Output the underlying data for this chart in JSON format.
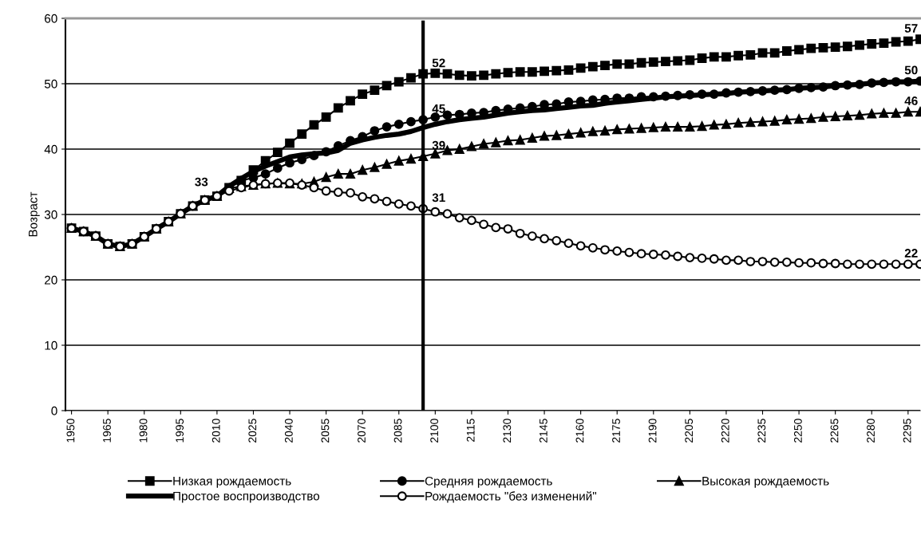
{
  "chart_data": {
    "type": "line",
    "ylabel": "Возраст",
    "x": [
      1950,
      1955,
      1960,
      1965,
      1970,
      1975,
      1980,
      1985,
      1990,
      1995,
      2000,
      2005,
      2010,
      2015,
      2020,
      2025,
      2030,
      2035,
      2040,
      2045,
      2050,
      2055,
      2060,
      2065,
      2070,
      2075,
      2080,
      2085,
      2090,
      2095,
      2100,
      2105,
      2110,
      2115,
      2120,
      2125,
      2130,
      2135,
      2140,
      2145,
      2150,
      2155,
      2160,
      2165,
      2170,
      2175,
      2180,
      2185,
      2190,
      2195,
      2200,
      2205,
      2210,
      2215,
      2220,
      2225,
      2230,
      2235,
      2240,
      2245,
      2250,
      2255,
      2260,
      2265,
      2270,
      2275,
      2280,
      2285,
      2290,
      2295,
      2300
    ],
    "xlim": [
      1947.5,
      2300
    ],
    "xticks": [
      1950,
      1965,
      1980,
      1995,
      2010,
      2025,
      2040,
      2055,
      2070,
      2085,
      2100,
      2115,
      2130,
      2145,
      2160,
      2175,
      2190,
      2205,
      2220,
      2235,
      2250,
      2265,
      2280,
      2295
    ],
    "ylim": [
      0,
      60
    ],
    "yticks": [
      0,
      10,
      20,
      30,
      40,
      50,
      60
    ],
    "grid": "y",
    "legend": "bottom",
    "series": [
      {
        "name": "Низкая рождаемость",
        "color": "#000000",
        "marker": "square",
        "values": [
          27.9,
          27.4,
          26.7,
          25.5,
          25.1,
          25.5,
          26.6,
          27.8,
          28.9,
          30.1,
          31.3,
          32.2,
          32.8,
          34.1,
          35.2,
          36.8,
          38.2,
          39.5,
          40.9,
          42.3,
          43.7,
          44.9,
          46.3,
          47.4,
          48.4,
          49.0,
          49.7,
          50.3,
          50.9,
          51.5,
          51.6,
          51.5,
          51.3,
          51.2,
          51.3,
          51.5,
          51.7,
          51.8,
          51.8,
          51.9,
          52.0,
          52.1,
          52.4,
          52.6,
          52.8,
          53.0,
          53.0,
          53.2,
          53.3,
          53.4,
          53.5,
          53.6,
          53.9,
          54.1,
          54.1,
          54.3,
          54.4,
          54.7,
          54.7,
          55.0,
          55.2,
          55.4,
          55.5,
          55.6,
          55.7,
          55.9,
          56.1,
          56.2,
          56.4,
          56.5,
          56.8
        ]
      },
      {
        "name": "Средняя рождаемость",
        "color": "#000000",
        "marker": "circle",
        "values": [
          27.9,
          27.4,
          26.7,
          25.5,
          25.1,
          25.5,
          26.6,
          27.8,
          28.9,
          30.1,
          31.3,
          32.2,
          32.8,
          34.0,
          35.2,
          35.6,
          36.2,
          37.1,
          37.9,
          38.4,
          39.0,
          39.6,
          40.5,
          41.3,
          41.9,
          42.8,
          43.4,
          43.8,
          44.2,
          44.5,
          44.9,
          45.2,
          45.3,
          45.5,
          45.6,
          45.9,
          46.1,
          46.3,
          46.5,
          46.8,
          46.9,
          47.2,
          47.3,
          47.5,
          47.6,
          47.8,
          47.8,
          48.0,
          48.0,
          48.1,
          48.2,
          48.3,
          48.4,
          48.4,
          48.6,
          48.7,
          48.8,
          48.9,
          49.0,
          49.1,
          49.3,
          49.4,
          49.5,
          49.7,
          49.8,
          49.9,
          50.1,
          50.2,
          50.3,
          50.3,
          50.4
        ]
      },
      {
        "name": "Высокая рождаемость",
        "color": "#000000",
        "marker": "triangle",
        "values": [
          27.9,
          27.4,
          26.7,
          25.5,
          25.1,
          25.5,
          26.6,
          27.8,
          28.9,
          30.1,
          31.3,
          32.2,
          32.8,
          34.0,
          34.3,
          34.5,
          34.7,
          34.8,
          34.7,
          34.7,
          35.0,
          35.7,
          36.2,
          36.2,
          36.8,
          37.2,
          37.7,
          38.2,
          38.5,
          38.9,
          39.3,
          39.8,
          40.0,
          40.4,
          40.8,
          41.0,
          41.3,
          41.4,
          41.7,
          42.0,
          42.1,
          42.3,
          42.5,
          42.7,
          42.8,
          43.0,
          43.1,
          43.2,
          43.3,
          43.4,
          43.4,
          43.4,
          43.5,
          43.7,
          43.8,
          44.0,
          44.1,
          44.2,
          44.3,
          44.5,
          44.6,
          44.7,
          44.9,
          45.0,
          45.1,
          45.2,
          45.4,
          45.5,
          45.5,
          45.7,
          45.7
        ]
      },
      {
        "name": "Простое воспроизводство",
        "color": "#000000",
        "marker": "none",
        "values": [
          27.9,
          27.4,
          26.7,
          25.5,
          25.1,
          25.5,
          26.6,
          27.8,
          28.9,
          30.1,
          31.3,
          32.2,
          32.8,
          34.3,
          35.5,
          36.6,
          37.4,
          38.1,
          38.8,
          39.1,
          39.3,
          39.4,
          39.8,
          40.9,
          41.4,
          41.8,
          42.1,
          42.3,
          42.7,
          43.3,
          43.8,
          44.2,
          44.5,
          44.7,
          44.9,
          45.2,
          45.5,
          45.7,
          45.9,
          46.0,
          46.2,
          46.4,
          46.6,
          46.7,
          47.0,
          47.2,
          47.4,
          47.6,
          47.8,
          48.0,
          48.1,
          48.2,
          48.3,
          48.4,
          48.5,
          48.7,
          48.8,
          48.9,
          49.0,
          49.1,
          49.3,
          49.4,
          49.5,
          49.7,
          49.8,
          49.9,
          50.1,
          50.2,
          50.3,
          50.3,
          50.4
        ]
      },
      {
        "name": "Рождаемость \"без изменений\"",
        "color": "#000000",
        "marker": "circle",
        "values": [
          27.9,
          27.4,
          26.7,
          25.5,
          25.1,
          25.5,
          26.6,
          27.8,
          28.9,
          30.1,
          31.3,
          32.2,
          32.8,
          33.6,
          34.1,
          34.5,
          34.7,
          34.8,
          34.8,
          34.5,
          34.1,
          33.6,
          33.4,
          33.3,
          32.7,
          32.4,
          32.0,
          31.6,
          31.3,
          30.9,
          30.4,
          30.1,
          29.5,
          29.1,
          28.5,
          28.0,
          27.8,
          27.1,
          26.7,
          26.3,
          26.0,
          25.6,
          25.2,
          24.9,
          24.6,
          24.4,
          24.2,
          24.0,
          23.9,
          23.8,
          23.6,
          23.4,
          23.3,
          23.2,
          23.0,
          23.0,
          22.8,
          22.8,
          22.7,
          22.7,
          22.6,
          22.6,
          22.5,
          22.5,
          22.4,
          22.4,
          22.4,
          22.4,
          22.4,
          22.4,
          22.4
        ]
      }
    ],
    "ref_lines": [
      {
        "axis": "x",
        "value": 2095,
        "color": "#000000"
      }
    ],
    "annotations": [
      {
        "text": "33",
        "x": 2010,
        "y": 32.8
      },
      {
        "text": "52",
        "x": 2095,
        "y": 51.5
      },
      {
        "text": "45",
        "x": 2095,
        "y": 44.5
      },
      {
        "text": "39",
        "x": 2095,
        "y": 38.9
      },
      {
        "text": "31",
        "x": 2095,
        "y": 30.9
      },
      {
        "text": "57",
        "x": 2300,
        "y": 56.8
      },
      {
        "text": "50",
        "x": 2300,
        "y": 50.4
      },
      {
        "text": "46",
        "x": 2300,
        "y": 45.7
      },
      {
        "text": "22",
        "x": 2300,
        "y": 22.4
      }
    ]
  }
}
